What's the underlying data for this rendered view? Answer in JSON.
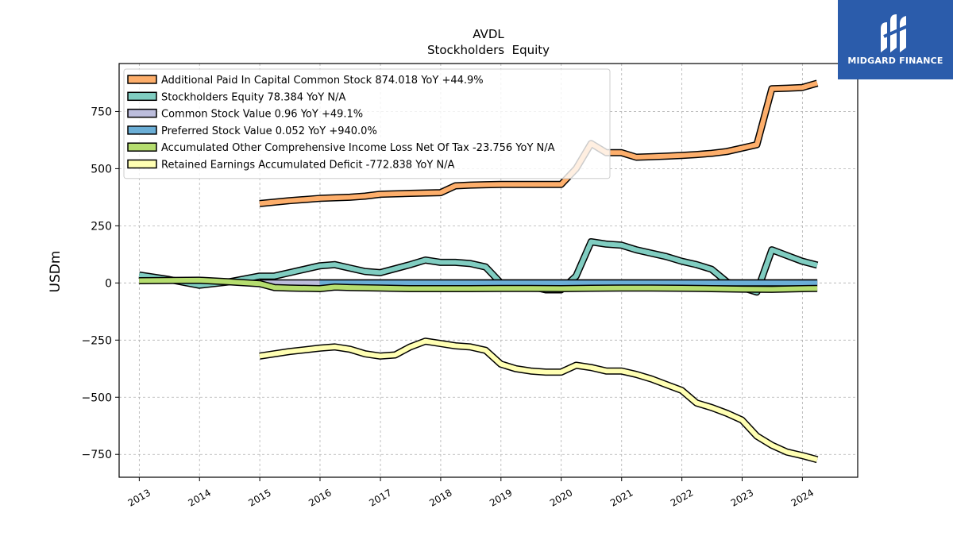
{
  "chart_data": {
    "type": "line",
    "title": "AVDL",
    "subtitle": "Stockholders  Equity",
    "ylabel": "USDm",
    "xlabel": "",
    "ylim": [
      -850,
      960
    ],
    "xlim": [
      "2012-09-01",
      "2024-12-01"
    ],
    "yticks": [
      -750,
      -500,
      -250,
      0,
      250,
      500,
      750
    ],
    "ytick_labels": [
      "−750",
      "−500",
      "−250",
      "0",
      "250",
      "500",
      "750"
    ],
    "xticks": [
      "2013-01-01",
      "2014-01-01",
      "2015-01-01",
      "2016-01-01",
      "2017-01-01",
      "2018-01-01",
      "2019-01-01",
      "2020-01-01",
      "2021-01-01",
      "2022-01-01",
      "2023-01-01",
      "2024-01-01"
    ],
    "xtick_labels": [
      "2013",
      "2014",
      "2015",
      "2016",
      "2017",
      "2018",
      "2019",
      "2020",
      "2021",
      "2022",
      "2023",
      "2024"
    ],
    "grid": true,
    "legend_position": "top-left",
    "series": [
      {
        "name": "Additional Paid In Capital Common Stock  874.018 YoY +44.9%",
        "color": "#fdae6b",
        "x": [
          "2014-12-31",
          "2015-06-30",
          "2015-12-31",
          "2016-06-30",
          "2016-09-30",
          "2016-12-31",
          "2017-06-30",
          "2017-12-31",
          "2018-03-31",
          "2018-06-30",
          "2018-09-30",
          "2018-12-31",
          "2019-06-30",
          "2019-09-30",
          "2019-12-31",
          "2020-03-31",
          "2020-06-30",
          "2020-09-30",
          "2020-12-31",
          "2021-03-31",
          "2021-06-30",
          "2021-09-30",
          "2021-12-31",
          "2022-03-31",
          "2022-06-30",
          "2022-09-30",
          "2022-12-31",
          "2023-03-31",
          "2023-06-30",
          "2023-09-30",
          "2023-12-31",
          "2024-03-31"
        ],
        "values": [
          347,
          360,
          370,
          375,
          380,
          388,
          392,
          395,
          425,
          428,
          430,
          431,
          431,
          431,
          431,
          500,
          610,
          570,
          570,
          550,
          552,
          555,
          558,
          562,
          567,
          575,
          590,
          605,
          850,
          852,
          855,
          874
        ]
      },
      {
        "name": "Stockholders Equity  78.384 YoY N/A",
        "color": "#80cdc1",
        "x": [
          "2012-12-31",
          "2013-06-30",
          "2013-12-31",
          "2014-06-30",
          "2014-12-31",
          "2015-03-31",
          "2015-06-30",
          "2015-12-31",
          "2016-03-31",
          "2016-06-30",
          "2016-09-30",
          "2016-12-31",
          "2017-06-30",
          "2017-09-30",
          "2017-12-31",
          "2018-03-31",
          "2018-06-30",
          "2018-09-30",
          "2018-12-31",
          "2019-06-30",
          "2019-09-30",
          "2019-12-31",
          "2020-03-31",
          "2020-06-30",
          "2020-09-30",
          "2020-12-31",
          "2021-03-31",
          "2021-06-30",
          "2021-09-30",
          "2021-12-31",
          "2022-03-31",
          "2022-06-30",
          "2022-09-30",
          "2022-12-31",
          "2023-03-31",
          "2023-06-30",
          "2023-09-30",
          "2023-12-31",
          "2024-03-31"
        ],
        "values": [
          35,
          15,
          -10,
          5,
          30,
          30,
          45,
          75,
          80,
          65,
          50,
          45,
          80,
          100,
          90,
          90,
          85,
          70,
          0,
          -15,
          -30,
          -30,
          30,
          180,
          170,
          165,
          145,
          130,
          115,
          95,
          80,
          60,
          5,
          -20,
          -40,
          145,
          120,
          95,
          78
        ]
      },
      {
        "name": "Common Stock Value  0.96 YoY +49.1%",
        "color": "#bcbddc",
        "x": [
          "2014-12-31",
          "2015-03-31",
          "2015-12-31",
          "2016-06-30",
          "2017-06-30",
          "2018-06-30",
          "2019-06-30",
          "2020-06-30",
          "2021-06-30",
          "2022-06-30",
          "2023-06-30",
          "2023-12-31",
          "2024-03-31"
        ],
        "values": [
          0.4,
          0.4,
          0.5,
          0.5,
          0.5,
          0.6,
          0.6,
          0.6,
          0.6,
          0.6,
          0.6,
          0.64,
          0.96
        ]
      },
      {
        "name": "Preferred Stock Value  0.052 YoY +940.0%",
        "color": "#6baed6",
        "x": [
          "2015-12-31",
          "2017-06-30",
          "2019-06-30",
          "2021-06-30",
          "2023-06-30",
          "2023-12-31",
          "2024-03-31"
        ],
        "values": [
          0.005,
          0.005,
          0.005,
          0.005,
          0.005,
          0.005,
          0.052
        ]
      },
      {
        "name": "Accumulated Other Comprehensive Income Loss Net Of Tax  -23.756 YoY N/A",
        "color": "#b5dd6f",
        "x": [
          "2012-12-31",
          "2013-12-31",
          "2014-06-30",
          "2014-12-31",
          "2015-03-31",
          "2015-06-30",
          "2015-12-31",
          "2016-03-31",
          "2016-06-30",
          "2016-12-31",
          "2017-06-30",
          "2017-12-31",
          "2018-06-30",
          "2018-12-31",
          "2019-06-30",
          "2019-12-31",
          "2020-06-30",
          "2020-12-31",
          "2021-06-30",
          "2021-12-31",
          "2022-06-30",
          "2022-12-31",
          "2023-06-30",
          "2023-12-31",
          "2024-03-31"
        ],
        "values": [
          10,
          12,
          5,
          -3,
          -20,
          -22,
          -25,
          -18,
          -20,
          -22,
          -25,
          -25,
          -25,
          -24,
          -24,
          -25,
          -23,
          -22,
          -22,
          -23,
          -25,
          -27,
          -28,
          -25,
          -24
        ]
      },
      {
        "name": "Retained Earnings Accumulated Deficit  -772.838 YoY N/A",
        "color": "#ffffb3",
        "x": [
          "2014-12-31",
          "2015-06-30",
          "2015-12-31",
          "2016-03-31",
          "2016-06-30",
          "2016-09-30",
          "2016-12-31",
          "2017-03-31",
          "2017-06-30",
          "2017-09-30",
          "2017-12-31",
          "2018-03-31",
          "2018-06-30",
          "2018-09-30",
          "2018-12-31",
          "2019-03-31",
          "2019-06-30",
          "2019-09-30",
          "2019-12-31",
          "2020-03-31",
          "2020-06-30",
          "2020-09-30",
          "2020-12-31",
          "2021-03-31",
          "2021-06-30",
          "2021-09-30",
          "2021-12-31",
          "2022-03-31",
          "2022-06-30",
          "2022-09-30",
          "2022-12-31",
          "2023-03-31",
          "2023-06-30",
          "2023-09-30",
          "2023-12-31",
          "2024-03-31"
        ],
        "values": [
          -320,
          -300,
          -285,
          -280,
          -290,
          -310,
          -320,
          -315,
          -280,
          -255,
          -265,
          -275,
          -280,
          -295,
          -355,
          -375,
          -385,
          -390,
          -390,
          -360,
          -370,
          -385,
          -385,
          -400,
          -420,
          -445,
          -470,
          -525,
          -545,
          -570,
          -600,
          -670,
          -710,
          -740,
          -755,
          -773
        ]
      }
    ]
  },
  "logo": {
    "text": "MIDGARD FINANCE"
  }
}
